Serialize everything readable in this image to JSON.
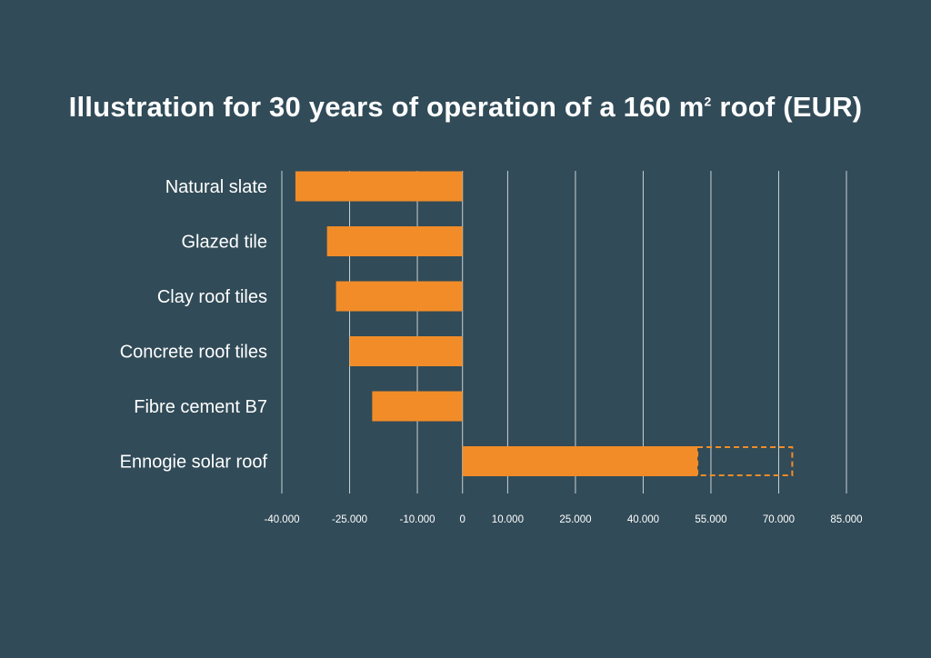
{
  "chart_data": {
    "type": "bar",
    "orientation": "horizontal",
    "title": {
      "prefix": "Illustration for 30 years of operation of a 160 m",
      "superscript": "2",
      "suffix": " roof (EUR)"
    },
    "categories": [
      "Natural slate",
      "Glazed tile",
      "Clay roof tiles",
      "Concrete roof tiles",
      "Fibre cement B7",
      "Ennogie solar roof"
    ],
    "values": [
      -37000,
      -30000,
      -28000,
      -25000,
      -20000,
      52000
    ],
    "potential": [
      null,
      null,
      null,
      null,
      null,
      73000
    ],
    "xlim": [
      -40000,
      85000
    ],
    "ticks": [
      -40000,
      -25000,
      -10000,
      0,
      10000,
      25000,
      40000,
      55000,
      70000,
      85000
    ],
    "tick_labels": [
      "-40.000",
      "-25.000",
      "-10.000",
      "0",
      "10.000",
      "25.000",
      "40.000",
      "55.000",
      "70.000",
      "85.000"
    ],
    "grid": true,
    "colors": {
      "background": "#314b58",
      "bar": "#f28c28",
      "grid": "#c9d2d6",
      "text": "#ffffff"
    }
  }
}
